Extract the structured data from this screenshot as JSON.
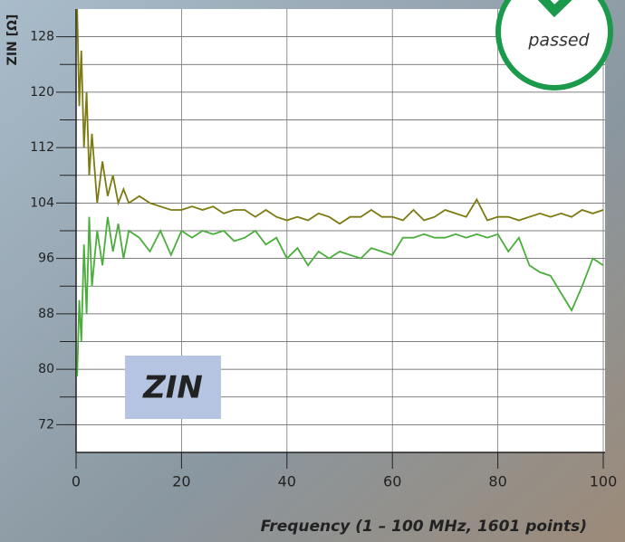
{
  "chart_data": {
    "type": "line",
    "title": "ZIN",
    "badge": "passed",
    "x_label": "Frequency (1 – 100 MHz, 1601 points)",
    "y_label": "ZIN [Ω]",
    "xlim": [
      0,
      100
    ],
    "xticks": [
      0,
      20,
      40,
      60,
      80,
      100
    ],
    "ylim": [
      68,
      132
    ],
    "yticks": [
      72,
      80,
      88,
      96,
      104,
      112,
      120,
      128
    ],
    "minor_yticks": [
      76,
      84,
      92,
      100,
      108,
      116,
      124
    ],
    "grid": true,
    "x": [
      0.2,
      0.6,
      1,
      1.5,
      2,
      2.5,
      3,
      4,
      5,
      6,
      7,
      8,
      9,
      10,
      12,
      14,
      16,
      18,
      20,
      22,
      24,
      26,
      28,
      30,
      32,
      34,
      36,
      38,
      40,
      42,
      44,
      46,
      48,
      50,
      52,
      54,
      56,
      58,
      60,
      62,
      64,
      66,
      68,
      70,
      72,
      74,
      76,
      78,
      80,
      82,
      84,
      86,
      88,
      90,
      92,
      94,
      96,
      98,
      100
    ],
    "series": [
      {
        "color": "#7d7a12",
        "values": [
          132,
          118,
          126,
          112,
          120,
          108,
          114,
          104,
          110,
          105,
          108,
          104,
          106,
          104,
          105,
          104,
          103.5,
          103,
          103,
          103.5,
          103,
          103.5,
          102.5,
          103,
          103,
          102,
          103,
          102,
          101.5,
          102,
          101.5,
          102.5,
          102,
          101,
          102,
          102,
          103,
          102,
          102,
          101.5,
          103,
          101.5,
          102,
          103,
          102.5,
          102,
          104.5,
          101.5,
          102,
          102,
          101.5,
          102,
          102.5,
          102,
          102.5,
          102,
          103,
          102.5,
          103
        ]
      },
      {
        "color": "#4aad3c",
        "values": [
          79,
          90,
          84,
          98,
          88,
          102,
          92,
          100,
          95,
          102,
          97,
          101,
          96,
          100,
          99,
          97,
          100,
          96.5,
          100,
          99,
          100,
          99.5,
          100,
          98.5,
          99,
          100,
          98,
          99,
          96,
          97.5,
          95,
          97,
          96,
          97,
          96.5,
          96,
          97.5,
          97,
          96.5,
          99,
          99,
          99.5,
          99,
          99,
          99.5,
          99,
          99.5,
          99,
          99.5,
          97,
          99,
          95,
          94,
          93.5,
          91,
          88.5,
          92,
          96,
          95
        ]
      }
    ]
  }
}
